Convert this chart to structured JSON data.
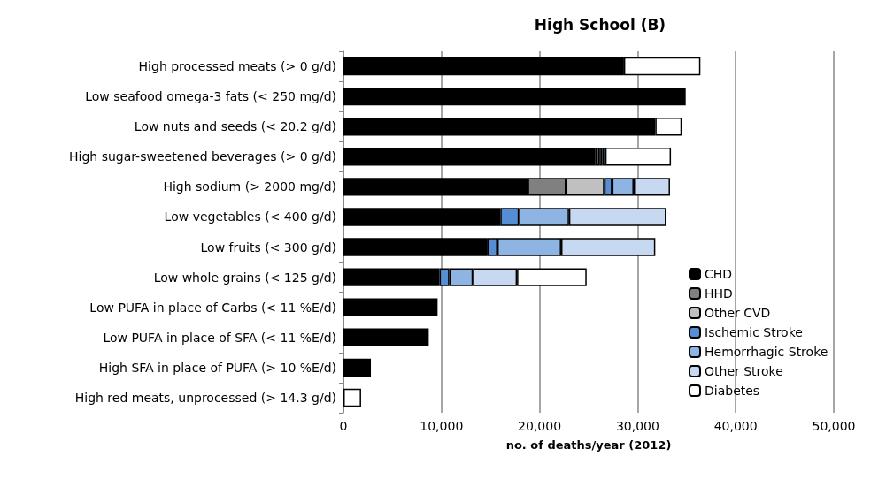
{
  "chart_data": {
    "type": "bar",
    "orientation": "horizontal",
    "stacked": true,
    "title": "High School (B)",
    "xlabel": "no. of deaths/year (2012)",
    "categories": [
      "High processed meats (> 0 g/d)",
      "Low seafood omega-3 fats (< 250 mg/d)",
      "Low nuts and seeds (< 20.2 g/d)",
      "High sugar-sweetened beverages (> 0 g/d)",
      "High sodium (> 2000 mg/d)",
      "Low vegetables (< 400 g/d)",
      "Low fruits (< 300 g/d)",
      "Low whole grains (< 125 g/d)",
      "Low PUFA in place of Carbs (< 11 %E/d)",
      "Low PUFA in place of SFA (< 11 %E/d)",
      "High SFA in place of PUFA (> 10 %E/d)",
      "High red meats, unprocessed (> 14.3 g/d)"
    ],
    "series": [
      {
        "name": "CHD",
        "color": "#000000",
        "values": [
          28600,
          34900,
          31800,
          25700,
          18800,
          16000,
          14700,
          9800,
          9600,
          8700,
          2800,
          null
        ]
      },
      {
        "name": "HHD",
        "color": "#808080",
        "values": [
          null,
          null,
          null,
          400,
          3900,
          null,
          null,
          null,
          null,
          null,
          null,
          null
        ]
      },
      {
        "name": "Other CVD",
        "color": "#c0c0c0",
        "values": [
          null,
          null,
          null,
          null,
          3900,
          null,
          null,
          null,
          null,
          null,
          null,
          null
        ]
      },
      {
        "name": "Ischemic Stroke",
        "color": "#558ed5",
        "values": [
          null,
          null,
          null,
          300,
          800,
          1900,
          1000,
          1000,
          null,
          null,
          null,
          null
        ]
      },
      {
        "name": "Hemorrhagic Stroke",
        "color": "#8eb4e3",
        "values": [
          null,
          null,
          null,
          300,
          2200,
          5100,
          6500,
          2400,
          null,
          null,
          null,
          null
        ]
      },
      {
        "name": "Other Stroke",
        "color": "#c6d9f1",
        "values": [
          null,
          null,
          null,
          null,
          3700,
          9900,
          9600,
          4500,
          null,
          null,
          null,
          null
        ]
      },
      {
        "name": "Diabetes",
        "color": "#ffffff",
        "values": [
          7800,
          null,
          2700,
          6700,
          null,
          null,
          null,
          7100,
          null,
          null,
          null,
          1800
        ]
      }
    ],
    "xlim": [
      0,
      50000
    ],
    "xticks": [
      {
        "value": 0,
        "label": "0"
      },
      {
        "value": 10000,
        "label": "10,000"
      },
      {
        "value": 20000,
        "label": "20,000"
      },
      {
        "value": 30000,
        "label": "30,000"
      },
      {
        "value": 40000,
        "label": "40,000"
      },
      {
        "value": 50000,
        "label": "50,000"
      }
    ],
    "grid": "x",
    "legend": "right"
  }
}
